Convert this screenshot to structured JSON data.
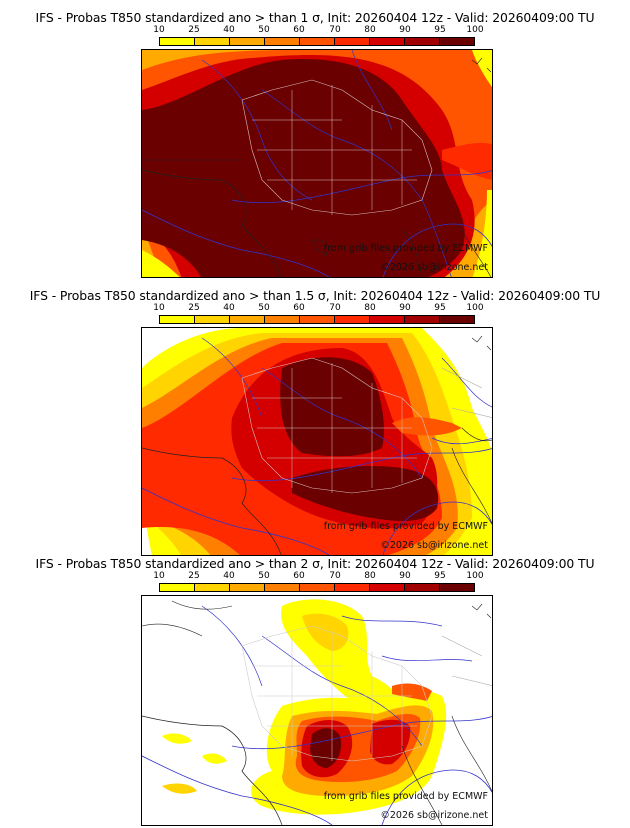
{
  "panels": [
    {
      "title": "IFS - Probas T850  standardized ano > than 1 σ, Init: 20260404 12z - Valid: 20260409:00 TU",
      "threshold": "1 σ"
    },
    {
      "title": "IFS - Probas T850  standardized ano > than 1.5 σ, Init: 20260404 12z - Valid: 20260409:00 TU",
      "threshold": "1.5 σ"
    },
    {
      "title": "IFS - Probas T850  standardized ano > than 2 σ, Init: 20260404 12z - Valid: 20260409:00 TU",
      "threshold": "2 σ"
    }
  ],
  "colorscale": {
    "ticks": [
      "10",
      "25",
      "40",
      "50",
      "60",
      "70",
      "80",
      "90",
      "95",
      "100"
    ],
    "colors": [
      "#ffff00",
      "#ffd400",
      "#ffaa00",
      "#ff7f00",
      "#ff5500",
      "#ff2a00",
      "#d40000",
      "#a00000",
      "#6a0000"
    ]
  },
  "credits": {
    "source": "from grib files provided by ECMWF",
    "copyright": "©2026 sb@irizone.net"
  }
}
